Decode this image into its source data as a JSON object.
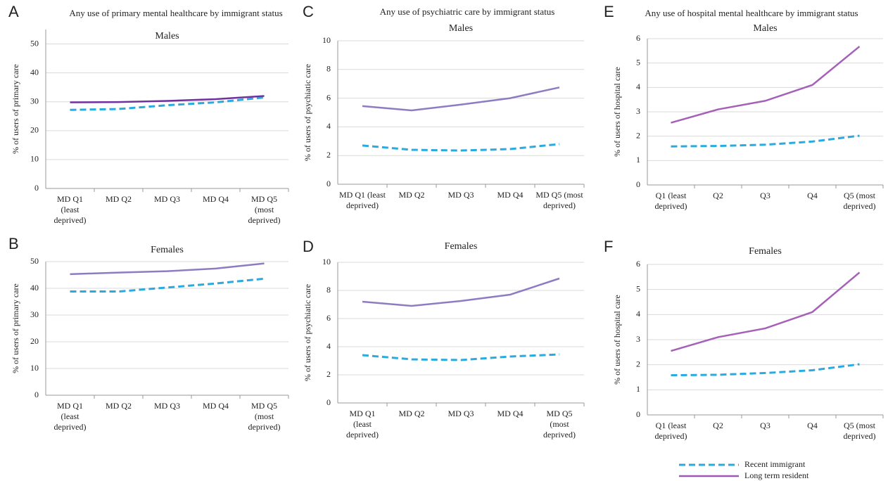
{
  "legend": [
    {
      "name": "Recent immigrant",
      "color": "#29abe2",
      "dash": true
    },
    {
      "name": "Long term resident",
      "color": "#9b59b6",
      "dash": false
    }
  ],
  "chart_data": [
    {
      "type": "line",
      "panel": "A",
      "title": "Any use of primary mental healthcare by immigrant status",
      "subtitle": "Males",
      "ylabel": "% of users of primary care",
      "categories": [
        [
          "MD Q1",
          "(least",
          "deprived)"
        ],
        [
          "MD Q2"
        ],
        [
          "MD Q3"
        ],
        [
          "MD Q4"
        ],
        [
          "MD Q5",
          "(most",
          "deprived)"
        ]
      ],
      "ylim": [
        0,
        55
      ],
      "yticks": [
        0,
        10,
        20,
        30,
        40,
        50
      ],
      "grid": true,
      "series": [
        {
          "color": "#29abe2",
          "dash": true,
          "values": [
            27.2,
            27.5,
            28.8,
            29.8,
            31.5
          ]
        },
        {
          "color": "#7030a0",
          "dash": false,
          "values": [
            29.8,
            29.9,
            30.3,
            30.9,
            32.0
          ]
        }
      ]
    },
    {
      "type": "line",
      "panel": "B",
      "subtitle": "Females",
      "ylabel": "% of users of primary care",
      "categories": [
        [
          "MD Q1",
          "(least",
          "deprived)"
        ],
        [
          "MD Q2"
        ],
        [
          "MD Q3"
        ],
        [
          "MD Q4"
        ],
        [
          "MD Q5",
          "(most",
          "deprived)"
        ]
      ],
      "ylim": [
        0,
        50
      ],
      "yticks": [
        0,
        10,
        20,
        30,
        40,
        50
      ],
      "grid": true,
      "series": [
        {
          "color": "#29abe2",
          "dash": true,
          "values": [
            38.8,
            38.8,
            40.3,
            41.8,
            43.6
          ]
        },
        {
          "color": "#8e7cc3",
          "dash": false,
          "values": [
            45.3,
            45.9,
            46.4,
            47.4,
            49.3
          ]
        }
      ]
    },
    {
      "type": "line",
      "panel": "C",
      "title": "Any use of psychiatric care by immigrant status",
      "subtitle": "Males",
      "ylabel": "% of users of psychiatic care",
      "categories": [
        [
          "MD Q1 (least",
          "deprived)"
        ],
        [
          "MD Q2"
        ],
        [
          "MD Q3"
        ],
        [
          "MD Q4"
        ],
        [
          "MD Q5 (most",
          "deprived)"
        ]
      ],
      "ylim": [
        0,
        10
      ],
      "yticks": [
        0,
        2,
        4,
        6,
        8,
        10
      ],
      "grid": true,
      "series": [
        {
          "color": "#29abe2",
          "dash": true,
          "values": [
            2.7,
            2.4,
            2.35,
            2.45,
            2.8
          ]
        },
        {
          "color": "#8e7cc3",
          "dash": false,
          "values": [
            5.45,
            5.15,
            5.55,
            6.0,
            6.75
          ]
        }
      ]
    },
    {
      "type": "line",
      "panel": "D",
      "subtitle": "Females",
      "ylabel": "% of users of psychiatic care",
      "categories": [
        [
          "MD Q1",
          "(least",
          "deprived)"
        ],
        [
          "MD Q2"
        ],
        [
          "MD Q3"
        ],
        [
          "MD Q4"
        ],
        [
          "MD Q5",
          "(most",
          "deprived)"
        ]
      ],
      "ylim": [
        0,
        10
      ],
      "yticks": [
        0,
        2,
        4,
        6,
        8,
        10
      ],
      "grid": true,
      "series": [
        {
          "color": "#29abe2",
          "dash": true,
          "values": [
            3.4,
            3.1,
            3.05,
            3.3,
            3.45
          ]
        },
        {
          "color": "#8e7cc3",
          "dash": false,
          "values": [
            7.2,
            6.9,
            7.25,
            7.7,
            8.85
          ]
        }
      ]
    },
    {
      "type": "line",
      "panel": "E",
      "title": "Any use of hospital mental healthcare by immigrant status",
      "subtitle": "Males",
      "ylabel": "% of users of hospital care",
      "categories": [
        [
          "Q1 (least",
          "deprived)"
        ],
        [
          "Q2"
        ],
        [
          "Q3"
        ],
        [
          "Q4"
        ],
        [
          "Q5 (most",
          "deprived)"
        ]
      ],
      "ylim": [
        0,
        6
      ],
      "yticks": [
        0,
        1,
        2,
        3,
        4,
        5,
        6
      ],
      "grid": true,
      "series": [
        {
          "color": "#29abe2",
          "dash": true,
          "values": [
            1.58,
            1.6,
            1.65,
            1.78,
            2.02
          ]
        },
        {
          "color": "#a560b8",
          "dash": false,
          "values": [
            2.55,
            3.1,
            3.45,
            4.1,
            5.68
          ]
        }
      ]
    },
    {
      "type": "line",
      "panel": "F",
      "subtitle": "Females",
      "ylabel": "% of users of hospital care",
      "categories": [
        [
          "Q1 (least",
          "deprived)"
        ],
        [
          "Q2"
        ],
        [
          "Q3"
        ],
        [
          "Q4"
        ],
        [
          "Q5 (most",
          "deprived)"
        ]
      ],
      "ylim": [
        0,
        6
      ],
      "yticks": [
        0,
        1,
        2,
        3,
        4,
        5,
        6
      ],
      "grid": true,
      "series": [
        {
          "color": "#29abe2",
          "dash": true,
          "values": [
            1.58,
            1.6,
            1.67,
            1.78,
            2.02
          ]
        },
        {
          "color": "#a560b8",
          "dash": false,
          "values": [
            2.55,
            3.1,
            3.45,
            4.1,
            5.68
          ]
        }
      ]
    }
  ]
}
